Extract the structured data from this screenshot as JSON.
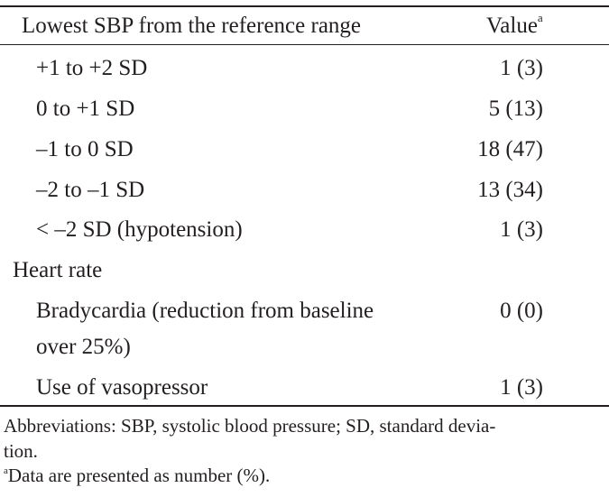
{
  "table": {
    "header": {
      "left": "Lowest SBP from the reference range",
      "right": "Value",
      "right_sup": "a"
    },
    "rows": [
      {
        "label": "+1 to +2 SD",
        "value": "1 (3)"
      },
      {
        "label": "0 to +1 SD",
        "value": "5 (13)"
      },
      {
        "label": "–1 to 0 SD",
        "value": "18 (47)"
      },
      {
        "label": "–2 to –1 SD",
        "value": "13 (34)"
      },
      {
        "label": "< –2 SD (hypotension)",
        "value": "1 (3)"
      },
      {
        "label": "Heart rate",
        "value": ""
      },
      {
        "label_line1": "Bradycardia (reduction from baseline",
        "label_line2": "over 25%)",
        "value": "0 (0)"
      },
      {
        "label": "Use of vasopressor",
        "value": "1 (3)"
      }
    ]
  },
  "footnotes": {
    "abbrev_line1": "Abbreviations: SBP, systolic blood pressure; SD, standard devia-",
    "abbrev_line2": "tion.",
    "note_sup": "a",
    "note_text": "Data are presented as number (%)."
  }
}
